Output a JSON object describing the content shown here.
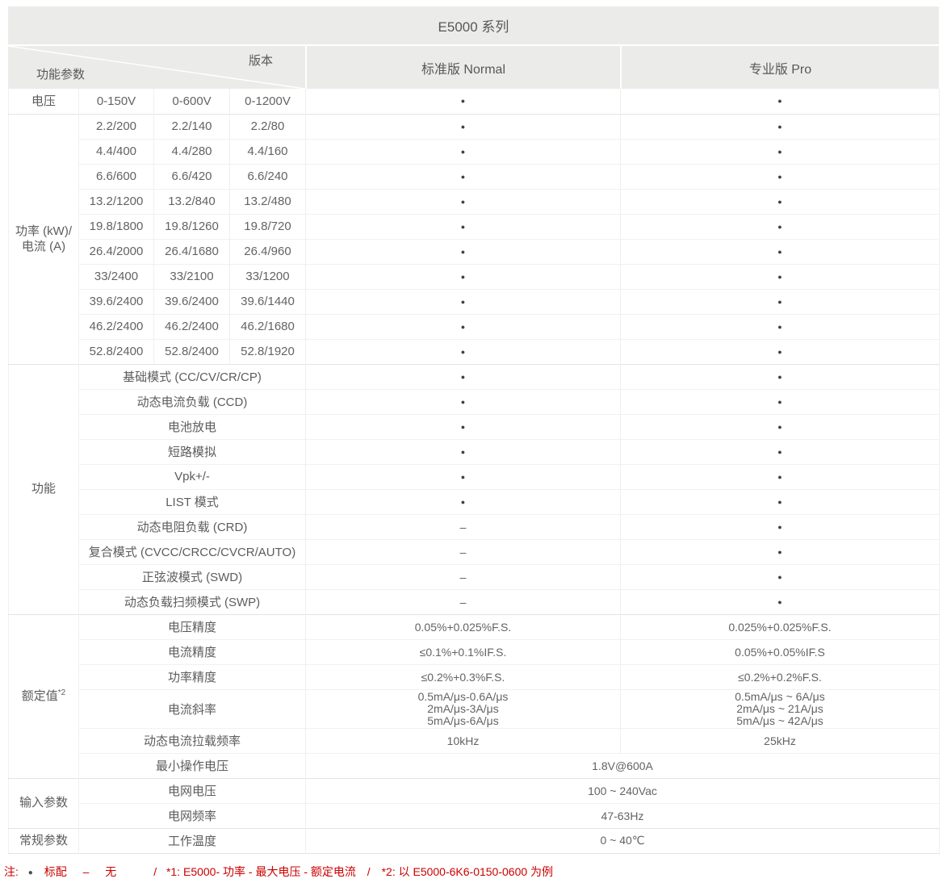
{
  "title": "E5000 系列",
  "header": {
    "corner_bottom_label": "功能参数",
    "corner_top_label": "版本",
    "columns": [
      "标准版 Normal",
      "专业版 Pro"
    ]
  },
  "sections": [
    {
      "id": "voltage",
      "label_lines": [
        "电压"
      ],
      "rows": [
        {
          "subs": [
            "0-150V",
            "0-600V",
            "0-1200V"
          ],
          "normal": "●",
          "pro": "●"
        }
      ]
    },
    {
      "id": "power-current",
      "label_lines": [
        "功率 (kW)/",
        "电流 (A)"
      ],
      "rows": [
        {
          "subs": [
            "2.2/200",
            "2.2/140",
            "2.2/80"
          ],
          "normal": "●",
          "pro": "●"
        },
        {
          "subs": [
            "4.4/400",
            "4.4/280",
            "4.4/160"
          ],
          "normal": "●",
          "pro": "●"
        },
        {
          "subs": [
            "6.6/600",
            "6.6/420",
            "6.6/240"
          ],
          "normal": "●",
          "pro": "●"
        },
        {
          "subs": [
            "13.2/1200",
            "13.2/840",
            "13.2/480"
          ],
          "normal": "●",
          "pro": "●"
        },
        {
          "subs": [
            "19.8/1800",
            "19.8/1260",
            "19.8/720"
          ],
          "normal": "●",
          "pro": "●"
        },
        {
          "subs": [
            "26.4/2000",
            "26.4/1680",
            "26.4/960"
          ],
          "normal": "●",
          "pro": "●"
        },
        {
          "subs": [
            "33/2400",
            "33/2100",
            "33/1200"
          ],
          "normal": "●",
          "pro": "●"
        },
        {
          "subs": [
            "39.6/2400",
            "39.6/2400",
            "39.6/1440"
          ],
          "normal": "●",
          "pro": "●"
        },
        {
          "subs": [
            "46.2/2400",
            "46.2/2400",
            "46.2/1680"
          ],
          "normal": "●",
          "pro": "●"
        },
        {
          "subs": [
            "52.8/2400",
            "52.8/2400",
            "52.8/1920"
          ],
          "normal": "●",
          "pro": "●"
        }
      ]
    },
    {
      "id": "functions",
      "label_lines": [
        "功能"
      ],
      "rows": [
        {
          "name": "基础模式 (CC/CV/CR/CP)",
          "normal": "●",
          "pro": "●"
        },
        {
          "name": "动态电流负载 (CCD)",
          "normal": "●",
          "pro": "●"
        },
        {
          "name": "电池放电",
          "normal": "●",
          "pro": "●"
        },
        {
          "name": "短路模拟",
          "normal": "●",
          "pro": "●"
        },
        {
          "name": "Vpk+/-",
          "normal": "●",
          "pro": "●"
        },
        {
          "name": "LIST 模式",
          "normal": "●",
          "pro": "●"
        },
        {
          "name": "动态电阻负载 (CRD)",
          "normal": "–",
          "pro": "●"
        },
        {
          "name": "复合模式 (CVCC/CRCC/CVCR/AUTO)",
          "normal": "–",
          "pro": "●"
        },
        {
          "name": "正弦波模式 (SWD)",
          "normal": "–",
          "pro": "●"
        },
        {
          "name": "动态负载扫频模式 (SWP)",
          "normal": "–",
          "pro": "●"
        }
      ]
    },
    {
      "id": "ratings",
      "label_lines": [
        "额定值"
      ],
      "label_sup": "*2",
      "rows": [
        {
          "name": "电压精度",
          "normal": "0.05%+0.025%F.S.",
          "pro": "0.025%+0.025%F.S."
        },
        {
          "name": "电流精度",
          "normal": "≤0.1%+0.1%IF.S.",
          "pro": "0.05%+0.05%IF.S"
        },
        {
          "name": "功率精度",
          "normal": "≤0.2%+0.3%F.S.",
          "pro": "≤0.2%+0.2%F.S."
        },
        {
          "name": "电流斜率",
          "normal_lines": [
            "0.5mA/μs-0.6A/μs",
            "2mA/μs-3A/μs",
            "5mA/μs-6A/μs"
          ],
          "pro_lines": [
            "0.5mA/μs ~ 6A/μs",
            "2mA/μs ~ 21A/μs",
            "5mA/μs ~ 42A/μs"
          ]
        },
        {
          "name": "动态电流拉载频率",
          "normal": "10kHz",
          "pro": "25kHz"
        },
        {
          "name": "最小操作电压",
          "merged": "1.8V@600A"
        }
      ]
    },
    {
      "id": "input-params",
      "label_lines": [
        "输入参数"
      ],
      "rows": [
        {
          "name": "电网电压",
          "merged": "100 ~ 240Vac"
        },
        {
          "name": "电网频率",
          "merged": "47-63Hz"
        }
      ]
    },
    {
      "id": "general-params",
      "label_lines": [
        "常规参数"
      ],
      "rows": [
        {
          "name": "工作温度",
          "merged": "0 ~ 40℃"
        }
      ]
    }
  ],
  "legend": {
    "prefix": "注:",
    "included_symbol": "●",
    "included_label": "标配",
    "na_symbol": "–",
    "na_label": "无",
    "separator1": "/",
    "note1": "*1: E5000- 功率 - 最大电压 - 额定电流",
    "separator2": "/",
    "note2": "*2: 以 E5000-6K6-0150-0600 为例"
  }
}
